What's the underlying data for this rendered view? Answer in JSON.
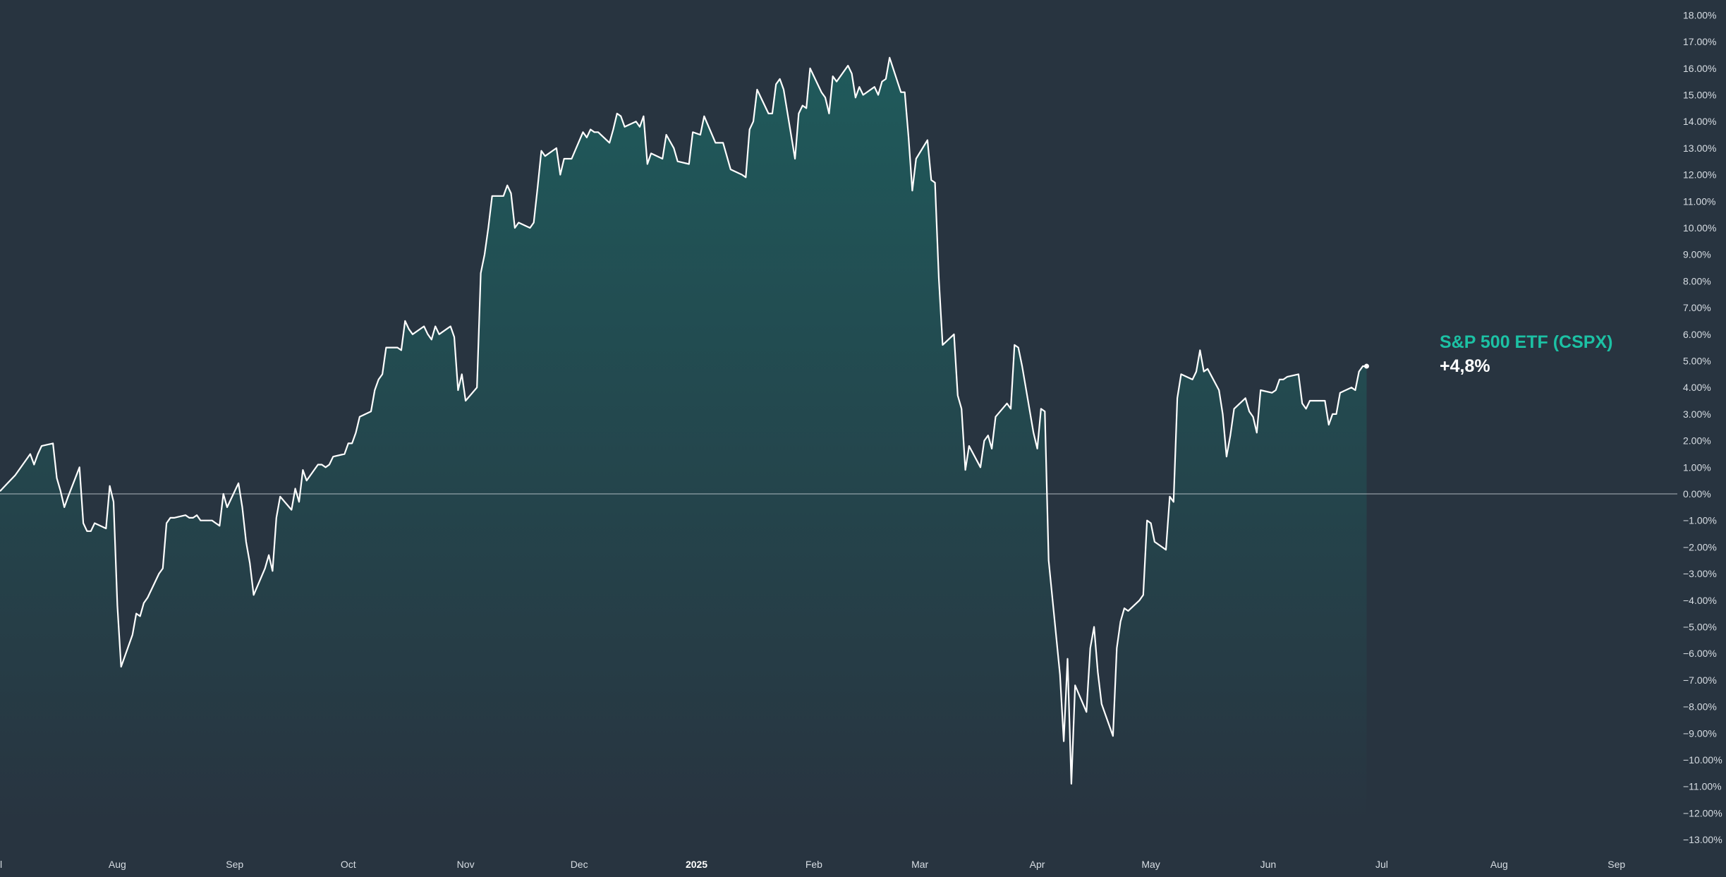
{
  "colors": {
    "background": "#283440",
    "line": "#ffffff",
    "fill_top": "#1f5a5b",
    "zero_line": "#cfd6dc",
    "label_accent": "#1cc1a4"
  },
  "chart_data": {
    "type": "area",
    "title": "",
    "xlabel": "",
    "ylabel": "",
    "ylim": [
      -13.5,
      18.5
    ],
    "y_axis_position": "right",
    "grid": false,
    "zero_line": true,
    "y_ticks": [
      "18.00%",
      "17.00%",
      "16.00%",
      "15.00%",
      "14.00%",
      "13.00%",
      "12.00%",
      "11.00%",
      "10.00%",
      "9.00%",
      "8.00%",
      "7.00%",
      "6.00%",
      "5.00%",
      "4.00%",
      "3.00%",
      "2.00%",
      "1.00%",
      "0.00%",
      "−1.00%",
      "−2.00%",
      "−3.00%",
      "−4.00%",
      "−5.00%",
      "−6.00%",
      "−7.00%",
      "−8.00%",
      "−9.00%",
      "−10.00%",
      "−11.00%",
      "−12.00%",
      "−13.00%"
    ],
    "x_ticks": [
      {
        "date": "2024-07-01",
        "label": "l"
      },
      {
        "date": "2024-08-01",
        "label": "Aug"
      },
      {
        "date": "2024-09-01",
        "label": "Sep"
      },
      {
        "date": "2024-10-01",
        "label": "Oct"
      },
      {
        "date": "2024-11-01",
        "label": "Nov"
      },
      {
        "date": "2024-12-01",
        "label": "Dec"
      },
      {
        "date": "2025-01-01",
        "label": "2025",
        "bold": true
      },
      {
        "date": "2025-02-01",
        "label": "Feb"
      },
      {
        "date": "2025-03-01",
        "label": "Mar"
      },
      {
        "date": "2025-04-01",
        "label": "Apr"
      },
      {
        "date": "2025-05-01",
        "label": "May"
      },
      {
        "date": "2025-06-01",
        "label": "Jun"
      },
      {
        "date": "2025-07-01",
        "label": "Jul"
      },
      {
        "date": "2025-08-01",
        "label": "Aug"
      },
      {
        "date": "2025-09-01",
        "label": "Sep"
      }
    ],
    "x_range": [
      "2024-07-01",
      "2025-09-10"
    ],
    "series": [
      {
        "name": "S&P 500 ETF (CSPX)",
        "last_value_label": "+4,8%",
        "points": [
          [
            "2024-07-01",
            0.1
          ],
          [
            "2024-07-03",
            0.4
          ],
          [
            "2024-07-05",
            0.7
          ],
          [
            "2024-07-08",
            1.3
          ],
          [
            "2024-07-09",
            1.5
          ],
          [
            "2024-07-10",
            1.1
          ],
          [
            "2024-07-11",
            1.5
          ],
          [
            "2024-07-12",
            1.8
          ],
          [
            "2024-07-15",
            1.9
          ],
          [
            "2024-07-16",
            0.6
          ],
          [
            "2024-07-17",
            0.1
          ],
          [
            "2024-07-18",
            -0.5
          ],
          [
            "2024-07-19",
            -0.1
          ],
          [
            "2024-07-22",
            1.0
          ],
          [
            "2024-07-23",
            -1.1
          ],
          [
            "2024-07-24",
            -1.4
          ],
          [
            "2024-07-25",
            -1.4
          ],
          [
            "2024-07-26",
            -1.1
          ],
          [
            "2024-07-29",
            -1.3
          ],
          [
            "2024-07-30",
            0.3
          ],
          [
            "2024-07-31",
            -0.3
          ],
          [
            "2024-08-01",
            -4.2
          ],
          [
            "2024-08-02",
            -6.5
          ],
          [
            "2024-08-05",
            -5.3
          ],
          [
            "2024-08-06",
            -4.5
          ],
          [
            "2024-08-07",
            -4.6
          ],
          [
            "2024-08-08",
            -4.1
          ],
          [
            "2024-08-09",
            -3.9
          ],
          [
            "2024-08-12",
            -3.0
          ],
          [
            "2024-08-13",
            -2.8
          ],
          [
            "2024-08-14",
            -1.1
          ],
          [
            "2024-08-15",
            -0.9
          ],
          [
            "2024-08-16",
            -0.9
          ],
          [
            "2024-08-19",
            -0.8
          ],
          [
            "2024-08-20",
            -0.9
          ],
          [
            "2024-08-21",
            -0.9
          ],
          [
            "2024-08-22",
            -0.8
          ],
          [
            "2024-08-23",
            -1.0
          ],
          [
            "2024-08-26",
            -1.0
          ],
          [
            "2024-08-27",
            -1.1
          ],
          [
            "2024-08-28",
            -1.2
          ],
          [
            "2024-08-29",
            0.0
          ],
          [
            "2024-08-30",
            -0.5
          ],
          [
            "2024-09-02",
            0.4
          ],
          [
            "2024-09-03",
            -0.5
          ],
          [
            "2024-09-04",
            -1.8
          ],
          [
            "2024-09-05",
            -2.6
          ],
          [
            "2024-09-06",
            -3.8
          ],
          [
            "2024-09-09",
            -2.8
          ],
          [
            "2024-09-10",
            -2.3
          ],
          [
            "2024-09-11",
            -2.9
          ],
          [
            "2024-09-12",
            -0.9
          ],
          [
            "2024-09-13",
            -0.1
          ],
          [
            "2024-09-16",
            -0.6
          ],
          [
            "2024-09-17",
            0.2
          ],
          [
            "2024-09-18",
            -0.3
          ],
          [
            "2024-09-19",
            0.9
          ],
          [
            "2024-09-20",
            0.5
          ],
          [
            "2024-09-23",
            1.1
          ],
          [
            "2024-09-24",
            1.1
          ],
          [
            "2024-09-25",
            1.0
          ],
          [
            "2024-09-26",
            1.1
          ],
          [
            "2024-09-27",
            1.4
          ],
          [
            "2024-09-30",
            1.5
          ],
          [
            "2024-10-01",
            1.9
          ],
          [
            "2024-10-02",
            1.9
          ],
          [
            "2024-10-03",
            2.3
          ],
          [
            "2024-10-04",
            2.9
          ],
          [
            "2024-10-07",
            3.1
          ],
          [
            "2024-10-08",
            3.9
          ],
          [
            "2024-10-09",
            4.3
          ],
          [
            "2024-10-10",
            4.5
          ],
          [
            "2024-10-11",
            5.5
          ],
          [
            "2024-10-14",
            5.5
          ],
          [
            "2024-10-15",
            5.4
          ],
          [
            "2024-10-16",
            6.5
          ],
          [
            "2024-10-17",
            6.2
          ],
          [
            "2024-10-18",
            6.0
          ],
          [
            "2024-10-21",
            6.3
          ],
          [
            "2024-10-22",
            6.0
          ],
          [
            "2024-10-23",
            5.8
          ],
          [
            "2024-10-24",
            6.3
          ],
          [
            "2024-10-25",
            6.0
          ],
          [
            "2024-10-28",
            6.3
          ],
          [
            "2024-10-29",
            5.9
          ],
          [
            "2024-10-30",
            3.9
          ],
          [
            "2024-10-31",
            4.5
          ],
          [
            "2024-11-01",
            3.5
          ],
          [
            "2024-11-04",
            4.0
          ],
          [
            "2024-11-05",
            8.3
          ],
          [
            "2024-11-06",
            9.0
          ],
          [
            "2024-11-07",
            10.0
          ],
          [
            "2024-11-08",
            11.2
          ],
          [
            "2024-11-11",
            11.2
          ],
          [
            "2024-11-12",
            11.6
          ],
          [
            "2024-11-13",
            11.3
          ],
          [
            "2024-11-14",
            10.0
          ],
          [
            "2024-11-15",
            10.2
          ],
          [
            "2024-11-18",
            10.0
          ],
          [
            "2024-11-19",
            10.2
          ],
          [
            "2024-11-20",
            11.5
          ],
          [
            "2024-11-21",
            12.9
          ],
          [
            "2024-11-22",
            12.7
          ],
          [
            "2024-11-25",
            13.0
          ],
          [
            "2024-11-26",
            12.0
          ],
          [
            "2024-11-27",
            12.6
          ],
          [
            "2024-11-29",
            12.6
          ],
          [
            "2024-12-02",
            13.6
          ],
          [
            "2024-12-03",
            13.4
          ],
          [
            "2024-12-04",
            13.7
          ],
          [
            "2024-12-05",
            13.6
          ],
          [
            "2024-12-06",
            13.6
          ],
          [
            "2024-12-09",
            13.2
          ],
          [
            "2024-12-10",
            13.7
          ],
          [
            "2024-12-11",
            14.3
          ],
          [
            "2024-12-12",
            14.2
          ],
          [
            "2024-12-13",
            13.8
          ],
          [
            "2024-12-16",
            14.0
          ],
          [
            "2024-12-17",
            13.8
          ],
          [
            "2024-12-18",
            14.2
          ],
          [
            "2024-12-19",
            12.4
          ],
          [
            "2024-12-20",
            12.8
          ],
          [
            "2024-12-23",
            12.6
          ],
          [
            "2024-12-24",
            13.5
          ],
          [
            "2024-12-26",
            13.0
          ],
          [
            "2024-12-27",
            12.5
          ],
          [
            "2024-12-30",
            12.4
          ],
          [
            "2024-12-31",
            13.6
          ],
          [
            "2025-01-02",
            13.5
          ],
          [
            "2025-01-03",
            14.2
          ],
          [
            "2025-01-06",
            13.2
          ],
          [
            "2025-01-07",
            13.2
          ],
          [
            "2025-01-08",
            13.2
          ],
          [
            "2025-01-10",
            12.2
          ],
          [
            "2025-01-13",
            12.0
          ],
          [
            "2025-01-14",
            11.9
          ],
          [
            "2025-01-15",
            13.7
          ],
          [
            "2025-01-16",
            14.0
          ],
          [
            "2025-01-17",
            15.2
          ],
          [
            "2025-01-20",
            14.3
          ],
          [
            "2025-01-21",
            14.3
          ],
          [
            "2025-01-22",
            15.4
          ],
          [
            "2025-01-23",
            15.6
          ],
          [
            "2025-01-24",
            15.2
          ],
          [
            "2025-01-27",
            12.6
          ],
          [
            "2025-01-28",
            14.3
          ],
          [
            "2025-01-29",
            14.6
          ],
          [
            "2025-01-30",
            14.5
          ],
          [
            "2025-01-31",
            16.0
          ],
          [
            "2025-02-03",
            15.1
          ],
          [
            "2025-02-04",
            14.9
          ],
          [
            "2025-02-05",
            14.3
          ],
          [
            "2025-02-06",
            15.7
          ],
          [
            "2025-02-07",
            15.5
          ],
          [
            "2025-02-10",
            16.1
          ],
          [
            "2025-02-11",
            15.8
          ],
          [
            "2025-02-12",
            14.9
          ],
          [
            "2025-02-13",
            15.3
          ],
          [
            "2025-02-14",
            15.0
          ],
          [
            "2025-02-17",
            15.3
          ],
          [
            "2025-02-18",
            15.0
          ],
          [
            "2025-02-19",
            15.5
          ],
          [
            "2025-02-20",
            15.6
          ],
          [
            "2025-02-21",
            16.4
          ],
          [
            "2025-02-24",
            15.1
          ],
          [
            "2025-02-25",
            15.1
          ],
          [
            "2025-02-26",
            13.4
          ],
          [
            "2025-02-27",
            11.4
          ],
          [
            "2025-02-28",
            12.6
          ],
          [
            "2025-03-03",
            13.3
          ],
          [
            "2025-03-04",
            11.8
          ],
          [
            "2025-03-05",
            11.7
          ],
          [
            "2025-03-06",
            8.1
          ],
          [
            "2025-03-07",
            5.6
          ],
          [
            "2025-03-10",
            6.0
          ],
          [
            "2025-03-11",
            3.7
          ],
          [
            "2025-03-12",
            3.2
          ],
          [
            "2025-03-13",
            0.9
          ],
          [
            "2025-03-14",
            1.8
          ],
          [
            "2025-03-17",
            1.0
          ],
          [
            "2025-03-18",
            2.0
          ],
          [
            "2025-03-19",
            2.2
          ],
          [
            "2025-03-20",
            1.7
          ],
          [
            "2025-03-21",
            2.9
          ],
          [
            "2025-03-24",
            3.4
          ],
          [
            "2025-03-25",
            3.2
          ],
          [
            "2025-03-26",
            5.6
          ],
          [
            "2025-03-27",
            5.5
          ],
          [
            "2025-03-28",
            4.8
          ],
          [
            "2025-03-31",
            2.3
          ],
          [
            "2025-04-01",
            1.7
          ],
          [
            "2025-04-02",
            3.2
          ],
          [
            "2025-04-03",
            3.1
          ],
          [
            "2025-04-04",
            -2.5
          ],
          [
            "2025-04-07",
            -6.8
          ],
          [
            "2025-04-08",
            -9.3
          ],
          [
            "2025-04-09",
            -6.2
          ],
          [
            "2025-04-10",
            -10.9
          ],
          [
            "2025-04-11",
            -7.2
          ],
          [
            "2025-04-14",
            -8.2
          ],
          [
            "2025-04-15",
            -5.8
          ],
          [
            "2025-04-16",
            -5.0
          ],
          [
            "2025-04-17",
            -6.7
          ],
          [
            "2025-04-18",
            -7.9
          ],
          [
            "2025-04-21",
            -9.1
          ],
          [
            "2025-04-22",
            -5.8
          ],
          [
            "2025-04-23",
            -4.8
          ],
          [
            "2025-04-24",
            -4.3
          ],
          [
            "2025-04-25",
            -4.4
          ],
          [
            "2025-04-28",
            -4.0
          ],
          [
            "2025-04-29",
            -3.8
          ],
          [
            "2025-04-30",
            -1.0
          ],
          [
            "2025-05-01",
            -1.1
          ],
          [
            "2025-05-02",
            -1.8
          ],
          [
            "2025-05-05",
            -2.1
          ],
          [
            "2025-05-06",
            -0.1
          ],
          [
            "2025-05-07",
            -0.3
          ],
          [
            "2025-05-08",
            3.6
          ],
          [
            "2025-05-09",
            4.5
          ],
          [
            "2025-05-12",
            4.3
          ],
          [
            "2025-05-13",
            4.6
          ],
          [
            "2025-05-14",
            5.4
          ],
          [
            "2025-05-15",
            4.6
          ],
          [
            "2025-05-16",
            4.7
          ],
          [
            "2025-05-19",
            3.9
          ],
          [
            "2025-05-20",
            3.0
          ],
          [
            "2025-05-21",
            1.4
          ],
          [
            "2025-05-22",
            2.2
          ],
          [
            "2025-05-23",
            3.2
          ],
          [
            "2025-05-26",
            3.6
          ],
          [
            "2025-05-27",
            3.1
          ],
          [
            "2025-05-28",
            2.9
          ],
          [
            "2025-05-29",
            2.3
          ],
          [
            "2025-05-30",
            3.9
          ],
          [
            "2025-06-02",
            3.8
          ],
          [
            "2025-06-03",
            3.9
          ],
          [
            "2025-06-04",
            4.3
          ],
          [
            "2025-06-05",
            4.3
          ],
          [
            "2025-06-06",
            4.4
          ],
          [
            "2025-06-09",
            4.5
          ],
          [
            "2025-06-10",
            3.4
          ],
          [
            "2025-06-11",
            3.2
          ],
          [
            "2025-06-12",
            3.5
          ],
          [
            "2025-06-13",
            3.5
          ],
          [
            "2025-06-16",
            3.5
          ],
          [
            "2025-06-17",
            2.6
          ],
          [
            "2025-06-18",
            3.0
          ],
          [
            "2025-06-19",
            3.0
          ],
          [
            "2025-06-20",
            3.8
          ],
          [
            "2025-06-23",
            4.0
          ],
          [
            "2025-06-24",
            3.9
          ],
          [
            "2025-06-25",
            4.6
          ],
          [
            "2025-06-26",
            4.8
          ],
          [
            "2025-06-27",
            4.8
          ]
        ]
      }
    ]
  }
}
